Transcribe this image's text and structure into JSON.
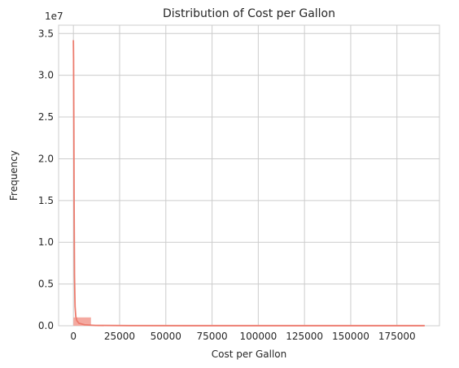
{
  "chart_data": {
    "type": "bar",
    "title": "Distribution of Cost per Gallon",
    "xlabel": "Cost per Gallon",
    "ylabel": "Frequency",
    "y_multiplier": "1e7",
    "xlim": [
      -8000,
      198000
    ],
    "ylim": [
      0,
      36000000
    ],
    "x_ticks": [
      0,
      25000,
      50000,
      75000,
      100000,
      125000,
      150000,
      175000
    ],
    "y_ticks": [
      0,
      5000000,
      10000000,
      15000000,
      20000000,
      25000000,
      30000000,
      35000000
    ],
    "y_tick_labels": [
      "0.0",
      "0.5",
      "1.0",
      "1.5",
      "2.0",
      "2.5",
      "3.0",
      "3.5"
    ],
    "grid": true,
    "bars": [
      {
        "x0": 0,
        "x1": 9500,
        "value": 1000000
      },
      {
        "x0": 9500,
        "x1": 190000,
        "value": 0
      }
    ],
    "kde": {
      "x": [
        0,
        100,
        250,
        400,
        600,
        900,
        1300,
        1900,
        3000,
        6000,
        12000,
        30000,
        60000,
        100000,
        140000,
        190000
      ],
      "y": [
        34200000,
        32000000,
        24000000,
        14000000,
        6000000,
        2300000,
        1100000,
        600000,
        300000,
        120000,
        40000,
        10000,
        3000,
        1000,
        500,
        300
      ]
    },
    "colors": {
      "bar_fill": "#f4a9a0",
      "line": "#ec7b6d",
      "grid": "#cccccc"
    }
  }
}
